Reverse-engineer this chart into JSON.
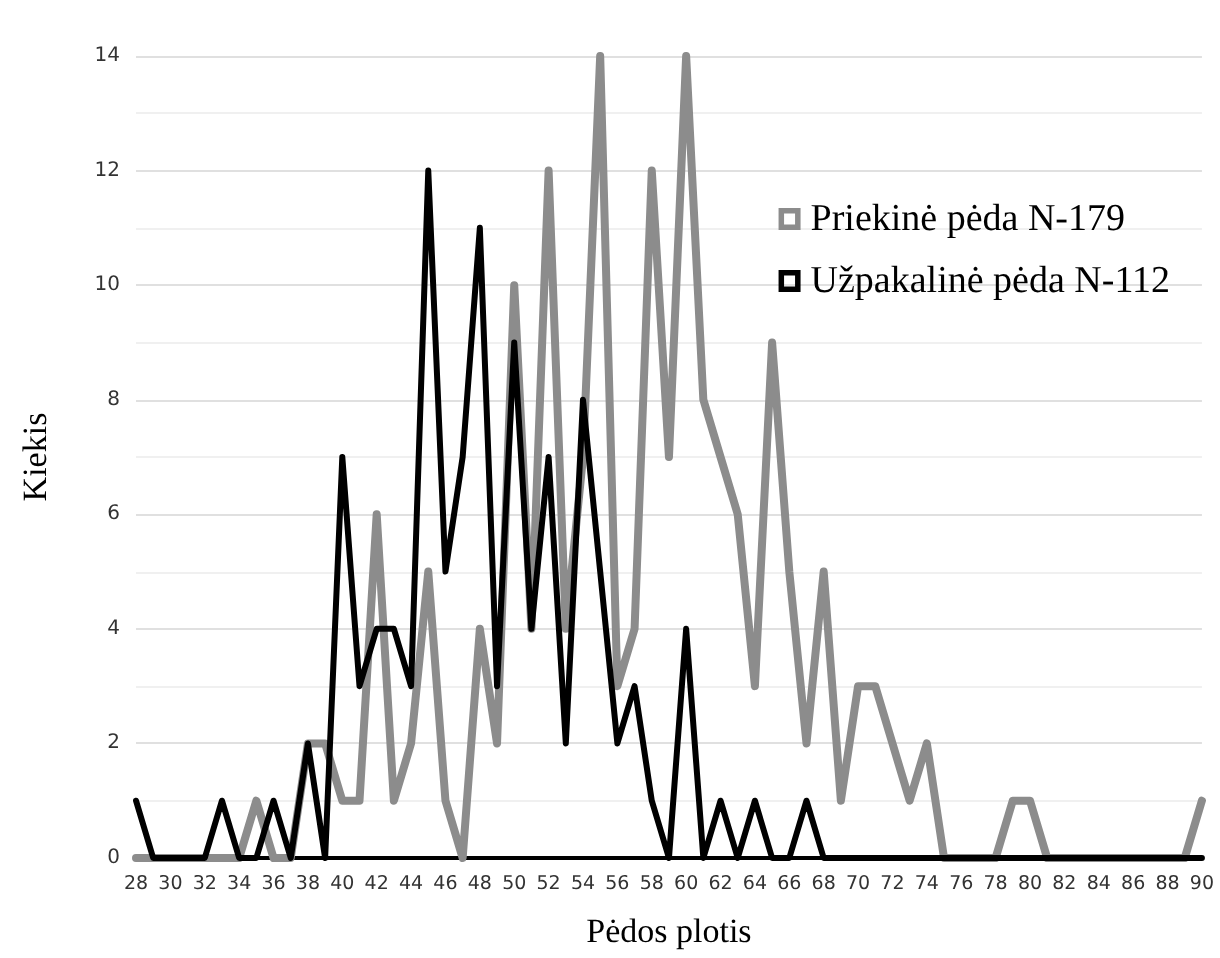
{
  "chart_data": {
    "type": "line",
    "xlabel": "Pėdos plotis",
    "ylabel": "Kiekis",
    "categories": [
      "28",
      null,
      "30",
      null,
      "32",
      null,
      "34",
      null,
      "36",
      null,
      "38",
      null,
      "40",
      null,
      "42",
      null,
      "44",
      null,
      "46",
      null,
      "48",
      null,
      "50",
      null,
      "52",
      null,
      "54",
      null,
      "56",
      null,
      "58",
      null,
      "60",
      null,
      "62",
      null,
      "64",
      null,
      "66",
      null,
      "68",
      null,
      "70",
      null,
      "72",
      null,
      "74",
      null,
      "76",
      null,
      "78",
      null,
      "80",
      null,
      "82",
      null,
      "84",
      null,
      "86",
      null,
      "88",
      null,
      "90"
    ],
    "series": [
      {
        "name": "Priekinė pėda N-179",
        "color": "#8c8c8c",
        "values": [
          0,
          0,
          0,
          0,
          0,
          0,
          0,
          1,
          0,
          0,
          2,
          2,
          1,
          1,
          6,
          1,
          2,
          5,
          1,
          0,
          4,
          2,
          10,
          4,
          12,
          4,
          7,
          14,
          3,
          4,
          12,
          7,
          14,
          8,
          7,
          6,
          3,
          9,
          5,
          2,
          5,
          1,
          3,
          3,
          2,
          1,
          2,
          0,
          0,
          0,
          0,
          1,
          1,
          0,
          0,
          0,
          0,
          0,
          0,
          0,
          0,
          0,
          1
        ]
      },
      {
        "name": "Užpakalinė pėda N-112",
        "color": "#000000",
        "values": [
          1,
          0,
          0,
          0,
          0,
          1,
          0,
          0,
          1,
          0,
          2,
          0,
          7,
          3,
          4,
          4,
          3,
          12,
          5,
          7,
          11,
          3,
          9,
          4,
          7,
          2,
          8,
          5,
          2,
          3,
          1,
          0,
          4,
          0,
          1,
          0,
          1,
          0,
          0,
          1,
          0,
          0,
          0,
          0,
          0,
          0,
          0,
          0,
          0,
          0,
          0,
          0,
          0,
          0,
          0,
          0,
          0,
          0,
          0,
          0,
          0,
          0,
          0
        ]
      }
    ],
    "ylim": [
      0,
      14
    ],
    "yticks": [
      0,
      2,
      4,
      6,
      8,
      10,
      12,
      14
    ],
    "grid": "y",
    "legend": "top right",
    "marker": "none",
    "line_style": "solid"
  }
}
